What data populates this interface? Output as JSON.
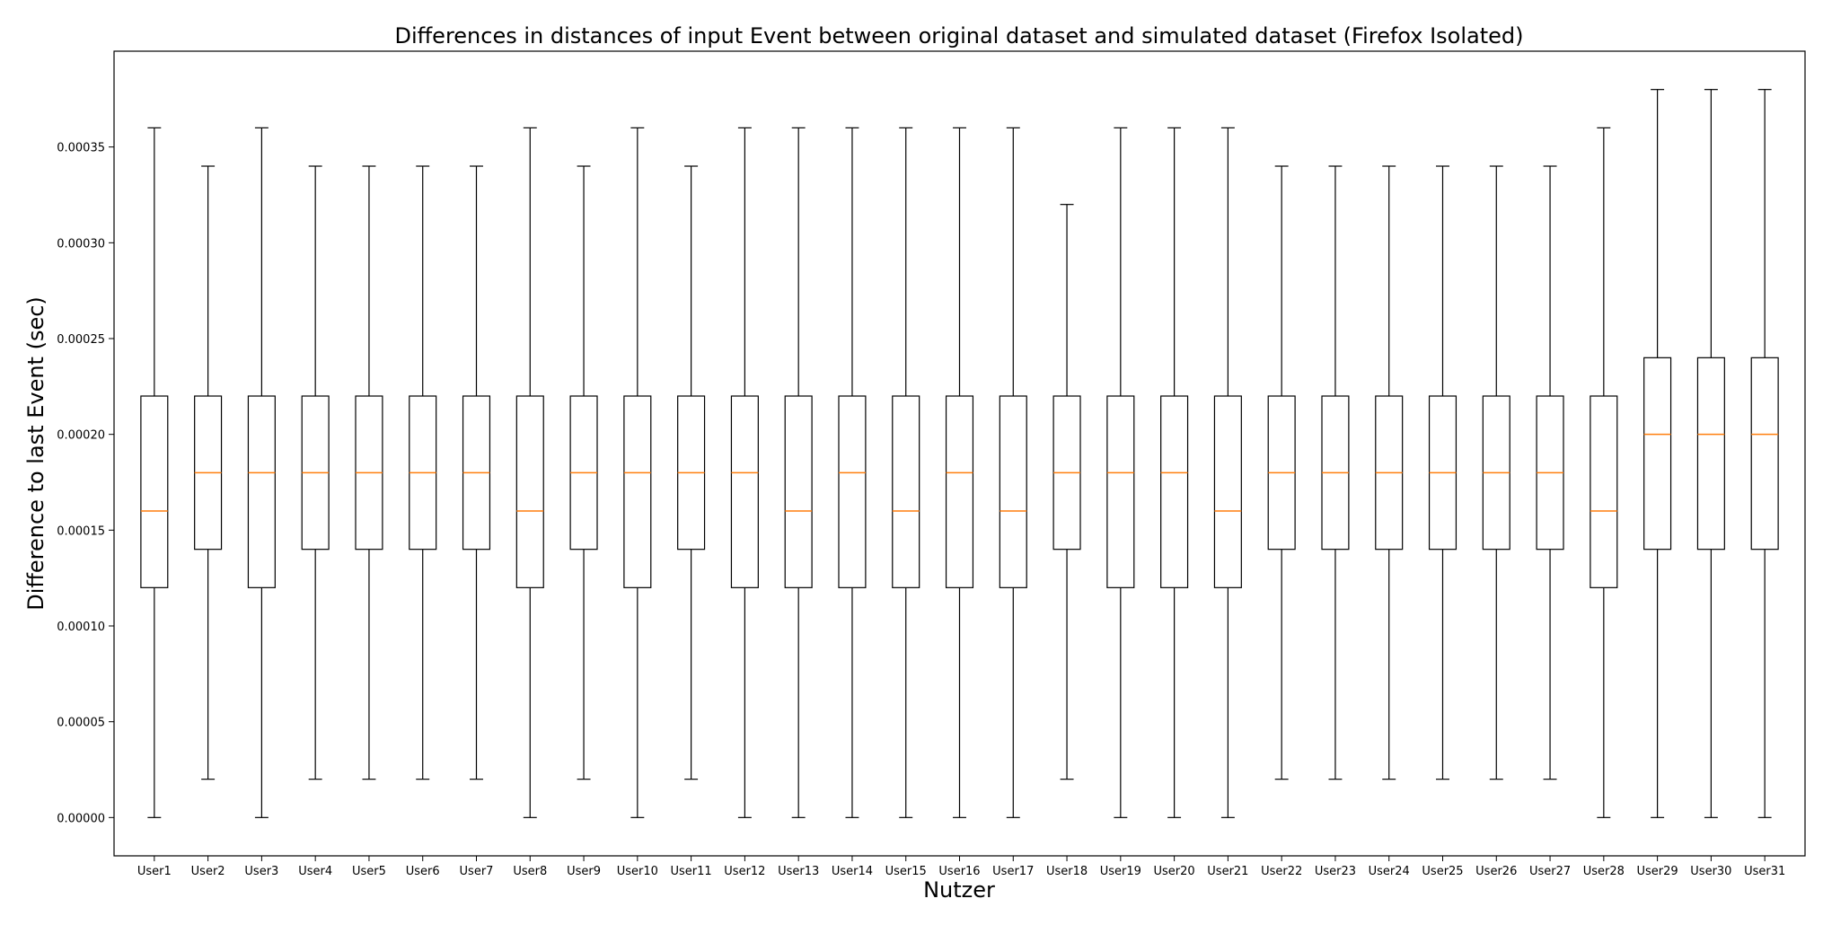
{
  "chart_data": {
    "type": "boxplot",
    "title": "Differences in distances of input Event between original dataset and simulated dataset (Firefox Isolated)",
    "xlabel": "Nutzer",
    "ylabel": "Difference to last Event (sec)",
    "ylim": [
      -2e-05,
      0.0004
    ],
    "yticks": [
      "0.00000",
      "0.00005",
      "0.00010",
      "0.00015",
      "0.00020",
      "0.00025",
      "0.00030",
      "0.00035"
    ],
    "grid": false,
    "colors": {
      "box": "#000000",
      "median": "#ff7f0e",
      "background": "#ffffff"
    },
    "categories": [
      "User1",
      "User2",
      "User3",
      "User4",
      "User5",
      "User6",
      "User7",
      "User8",
      "User9",
      "User10",
      "User11",
      "User12",
      "User13",
      "User14",
      "User15",
      "User16",
      "User17",
      "User18",
      "User19",
      "User20",
      "User21",
      "User22",
      "User23",
      "User24",
      "User25",
      "User26",
      "User27",
      "User28",
      "User29",
      "User30",
      "User31"
    ],
    "boxes": [
      {
        "whislo": 0.0,
        "q1": 0.00012,
        "med": 0.00016,
        "q3": 0.00022,
        "whishi": 0.00036
      },
      {
        "whislo": 2e-05,
        "q1": 0.00014,
        "med": 0.00018,
        "q3": 0.00022,
        "whishi": 0.00034
      },
      {
        "whislo": 0.0,
        "q1": 0.00012,
        "med": 0.00018,
        "q3": 0.00022,
        "whishi": 0.00036
      },
      {
        "whislo": 2e-05,
        "q1": 0.00014,
        "med": 0.00018,
        "q3": 0.00022,
        "whishi": 0.00034
      },
      {
        "whislo": 2e-05,
        "q1": 0.00014,
        "med": 0.00018,
        "q3": 0.00022,
        "whishi": 0.00034
      },
      {
        "whislo": 2e-05,
        "q1": 0.00014,
        "med": 0.00018,
        "q3": 0.00022,
        "whishi": 0.00034
      },
      {
        "whislo": 2e-05,
        "q1": 0.00014,
        "med": 0.00018,
        "q3": 0.00022,
        "whishi": 0.00034
      },
      {
        "whislo": 0.0,
        "q1": 0.00012,
        "med": 0.00016,
        "q3": 0.00022,
        "whishi": 0.00036
      },
      {
        "whislo": 2e-05,
        "q1": 0.00014,
        "med": 0.00018,
        "q3": 0.00022,
        "whishi": 0.00034
      },
      {
        "whislo": 0.0,
        "q1": 0.00012,
        "med": 0.00018,
        "q3": 0.00022,
        "whishi": 0.00036
      },
      {
        "whislo": 2e-05,
        "q1": 0.00014,
        "med": 0.00018,
        "q3": 0.00022,
        "whishi": 0.00034
      },
      {
        "whislo": 0.0,
        "q1": 0.00012,
        "med": 0.00018,
        "q3": 0.00022,
        "whishi": 0.00036
      },
      {
        "whislo": 0.0,
        "q1": 0.00012,
        "med": 0.00016,
        "q3": 0.00022,
        "whishi": 0.00036
      },
      {
        "whislo": 0.0,
        "q1": 0.00012,
        "med": 0.00018,
        "q3": 0.00022,
        "whishi": 0.00036
      },
      {
        "whislo": 0.0,
        "q1": 0.00012,
        "med": 0.00016,
        "q3": 0.00022,
        "whishi": 0.00036
      },
      {
        "whislo": 0.0,
        "q1": 0.00012,
        "med": 0.00018,
        "q3": 0.00022,
        "whishi": 0.00036
      },
      {
        "whislo": 0.0,
        "q1": 0.00012,
        "med": 0.00016,
        "q3": 0.00022,
        "whishi": 0.00036
      },
      {
        "whislo": 2e-05,
        "q1": 0.00014,
        "med": 0.00018,
        "q3": 0.00022,
        "whishi": 0.00032
      },
      {
        "whislo": 0.0,
        "q1": 0.00012,
        "med": 0.00018,
        "q3": 0.00022,
        "whishi": 0.00036
      },
      {
        "whislo": 0.0,
        "q1": 0.00012,
        "med": 0.00018,
        "q3": 0.00022,
        "whishi": 0.00036
      },
      {
        "whislo": 0.0,
        "q1": 0.00012,
        "med": 0.00016,
        "q3": 0.00022,
        "whishi": 0.00036
      },
      {
        "whislo": 2e-05,
        "q1": 0.00014,
        "med": 0.00018,
        "q3": 0.00022,
        "whishi": 0.00034
      },
      {
        "whislo": 2e-05,
        "q1": 0.00014,
        "med": 0.00018,
        "q3": 0.00022,
        "whishi": 0.00034
      },
      {
        "whislo": 2e-05,
        "q1": 0.00014,
        "med": 0.00018,
        "q3": 0.00022,
        "whishi": 0.00034
      },
      {
        "whislo": 2e-05,
        "q1": 0.00014,
        "med": 0.00018,
        "q3": 0.00022,
        "whishi": 0.00034
      },
      {
        "whislo": 2e-05,
        "q1": 0.00014,
        "med": 0.00018,
        "q3": 0.00022,
        "whishi": 0.00034
      },
      {
        "whislo": 2e-05,
        "q1": 0.00014,
        "med": 0.00018,
        "q3": 0.00022,
        "whishi": 0.00034
      },
      {
        "whislo": 0.0,
        "q1": 0.00012,
        "med": 0.00016,
        "q3": 0.00022,
        "whishi": 0.00036
      },
      {
        "whislo": 0.0,
        "q1": 0.00014,
        "med": 0.0002,
        "q3": 0.00024,
        "whishi": 0.00038
      },
      {
        "whislo": 0.0,
        "q1": 0.00014,
        "med": 0.0002,
        "q3": 0.00024,
        "whishi": 0.00038
      },
      {
        "whislo": 0.0,
        "q1": 0.00014,
        "med": 0.0002,
        "q3": 0.00024,
        "whishi": 0.00038
      }
    ]
  }
}
